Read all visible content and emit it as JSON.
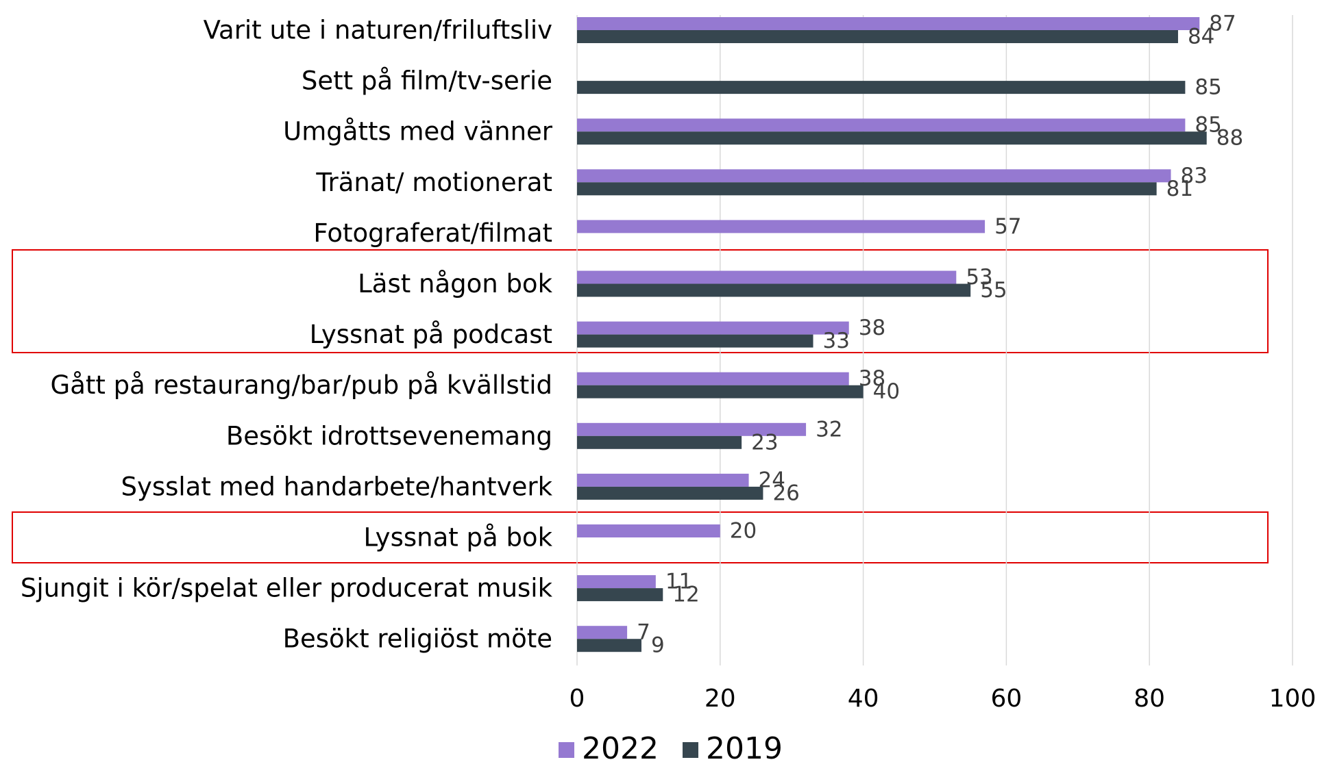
{
  "chart_data": {
    "type": "bar",
    "orientation": "horizontal",
    "categories": [
      "Varit ute i naturen/friluftsliv",
      "Sett på film/tv-serie",
      "Umgåtts med vänner",
      "Tränat/ motionerat",
      "Fotograferat/filmat",
      "Läst någon bok",
      "Lyssnat på podcast",
      "Gått på restaurang/bar/pub på kvällstid",
      "Besökt idrottsevenemang",
      "Sysslat med handarbete/hantverk",
      "Lyssnat på bok",
      "Sjungit i kör/spelat eller producerat musik",
      "Besökt religiöst möte"
    ],
    "series": [
      {
        "name": "2022",
        "color": "#9579d1",
        "values": [
          87,
          null,
          85,
          83,
          57,
          53,
          38,
          38,
          32,
          24,
          20,
          11,
          7
        ]
      },
      {
        "name": "2019",
        "color": "#36464f",
        "values": [
          84,
          85,
          88,
          81,
          null,
          55,
          33,
          40,
          23,
          26,
          null,
          12,
          9
        ]
      }
    ],
    "xlim": [
      0,
      100
    ],
    "xticks": [
      0,
      20,
      40,
      60,
      80,
      100
    ],
    "grid": true,
    "legend": "bottom"
  }
}
